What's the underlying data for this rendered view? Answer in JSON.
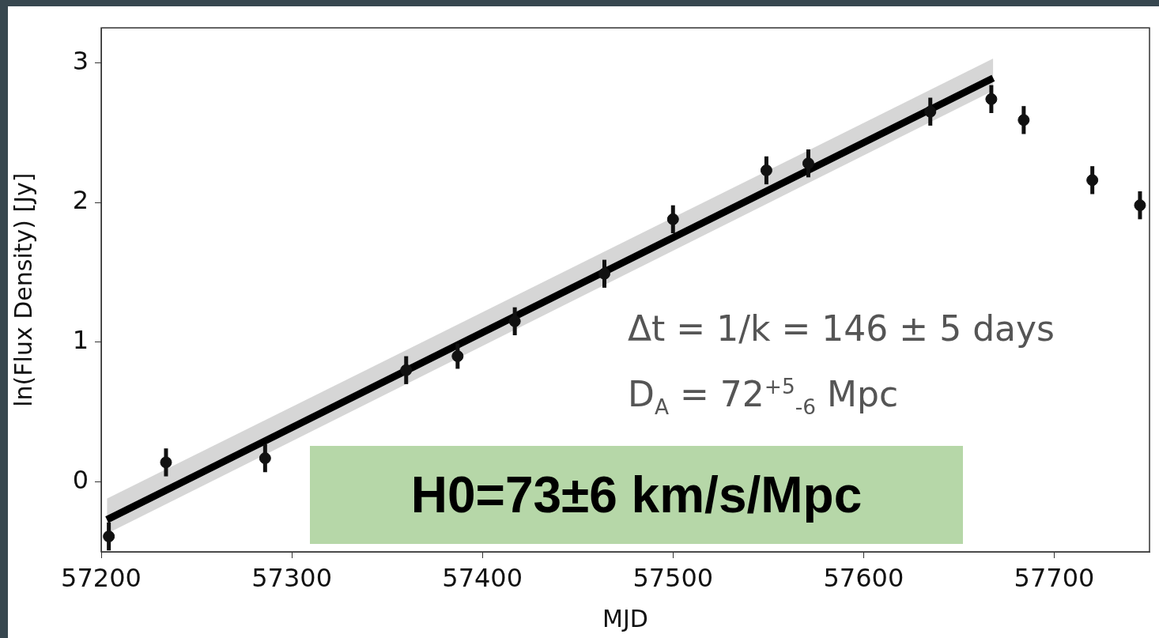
{
  "chart_data": {
    "type": "scatter",
    "xlabel": "MJD",
    "ylabel": "ln(Flux Density) [Jy]",
    "xlim": [
      57200,
      57750
    ],
    "xticks": [
      57200,
      57300,
      57400,
      57500,
      57600,
      57700
    ],
    "ylim": [
      -0.5,
      3.25
    ],
    "yticks": [
      0,
      1,
      2,
      3
    ],
    "grid": false,
    "legend": false,
    "line_style": "solid",
    "series": [
      {
        "type": "line",
        "marker": "none",
        "color": "#000000",
        "x": [
          57203,
          57668
        ],
        "values": [
          -0.27,
          2.89
        ],
        "lower": [
          -0.37,
          2.8
        ],
        "upper": [
          -0.12,
          3.03
        ]
      },
      {
        "marker": "circle",
        "color": "#111111",
        "x": [
          57204,
          57234,
          57286,
          57360,
          57387,
          57417,
          57464,
          57500,
          57549,
          57571,
          57635,
          57667,
          57684,
          57720,
          57745
        ],
        "values": [
          -0.39,
          0.14,
          0.17,
          0.8,
          0.9,
          1.15,
          1.49,
          1.88,
          2.23,
          2.28,
          2.65,
          2.74,
          2.59,
          2.16,
          1.98
        ],
        "errors": [
          0.1,
          0.1,
          0.1,
          0.1,
          0.09,
          0.1,
          0.1,
          0.1,
          0.1,
          0.1,
          0.1,
          0.1,
          0.1,
          0.1,
          0.1
        ]
      }
    ],
    "annotations": [
      "Δt = 1/k = 146 ± 5 days",
      "D$_{A}$ = 72$^{+5}$$_{-6}$ Mpc",
      "H0=73±6 km/s/Mpc"
    ]
  }
}
